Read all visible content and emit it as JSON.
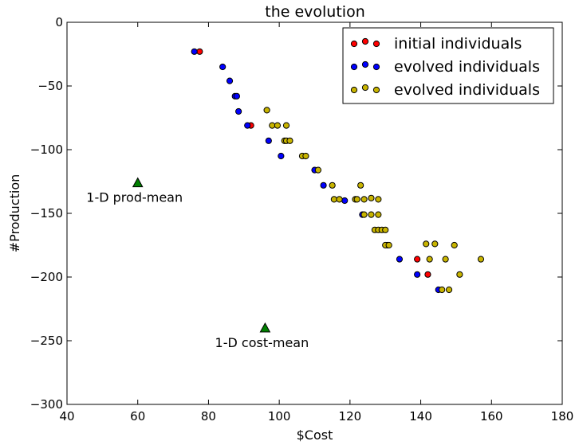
{
  "chart_data": {
    "type": "scatter",
    "title": "the evolution",
    "xlabel": "$Cost",
    "ylabel": "#Production",
    "xlim": [
      40,
      180
    ],
    "ylim": [
      -300,
      0
    ],
    "xticks": [
      "40",
      "60",
      "80",
      "100",
      "120",
      "140",
      "160",
      "180"
    ],
    "yticks": [
      "0",
      "−50",
      "−100",
      "−150",
      "−200",
      "−250",
      "−300"
    ],
    "legend_position": "top-right",
    "series": [
      {
        "name": "initial individuals",
        "color": "#ff0000",
        "points": [
          [
            77.5,
            -23
          ],
          [
            92,
            -81
          ],
          [
            139,
            -186
          ],
          [
            142,
            -198
          ]
        ]
      },
      {
        "name": "evolved individuals",
        "color": "#0000ff",
        "points": [
          [
            76,
            -23
          ],
          [
            84,
            -35
          ],
          [
            86,
            -46
          ],
          [
            87.5,
            -58
          ],
          [
            88,
            -58
          ],
          [
            88.5,
            -70
          ],
          [
            91,
            -81
          ],
          [
            97,
            -93
          ],
          [
            100.5,
            -105
          ],
          [
            110,
            -116
          ],
          [
            112.5,
            -128
          ],
          [
            118.5,
            -140
          ],
          [
            123.5,
            -151
          ],
          [
            130.5,
            -175
          ],
          [
            134,
            -186
          ],
          [
            139,
            -198
          ],
          [
            145,
            -210
          ]
        ]
      },
      {
        "name": "evolved individuals",
        "color": "#c8b400",
        "points": [
          [
            96.5,
            -69
          ],
          [
            98,
            -81
          ],
          [
            99.5,
            -81
          ],
          [
            102,
            -81
          ],
          [
            101.5,
            -93
          ],
          [
            102,
            -93
          ],
          [
            103,
            -93
          ],
          [
            106.5,
            -105
          ],
          [
            107.5,
            -105
          ],
          [
            111,
            -116
          ],
          [
            115,
            -128
          ],
          [
            123,
            -128
          ],
          [
            115.5,
            -139
          ],
          [
            117,
            -139
          ],
          [
            121.5,
            -139
          ],
          [
            122,
            -139
          ],
          [
            124,
            -139
          ],
          [
            126,
            -138
          ],
          [
            128,
            -139
          ],
          [
            124,
            -151
          ],
          [
            126,
            -151
          ],
          [
            128,
            -151
          ],
          [
            127,
            -163
          ],
          [
            128,
            -163
          ],
          [
            129,
            -163
          ],
          [
            130,
            -163
          ],
          [
            130,
            -175
          ],
          [
            131,
            -175
          ],
          [
            141.5,
            -174
          ],
          [
            144,
            -174
          ],
          [
            149.5,
            -175
          ],
          [
            142.5,
            -186
          ],
          [
            147,
            -186
          ],
          [
            157,
            -186
          ],
          [
            151,
            -198
          ],
          [
            146,
            -210
          ],
          [
            148,
            -210
          ]
        ]
      }
    ],
    "annotations": [
      {
        "label": "1-D prod-mean",
        "x": 60,
        "y": -126,
        "color": "#008000",
        "marker": "triangle"
      },
      {
        "label": "1-D cost-mean",
        "x": 96,
        "y": -240,
        "color": "#008000",
        "marker": "triangle"
      }
    ]
  }
}
